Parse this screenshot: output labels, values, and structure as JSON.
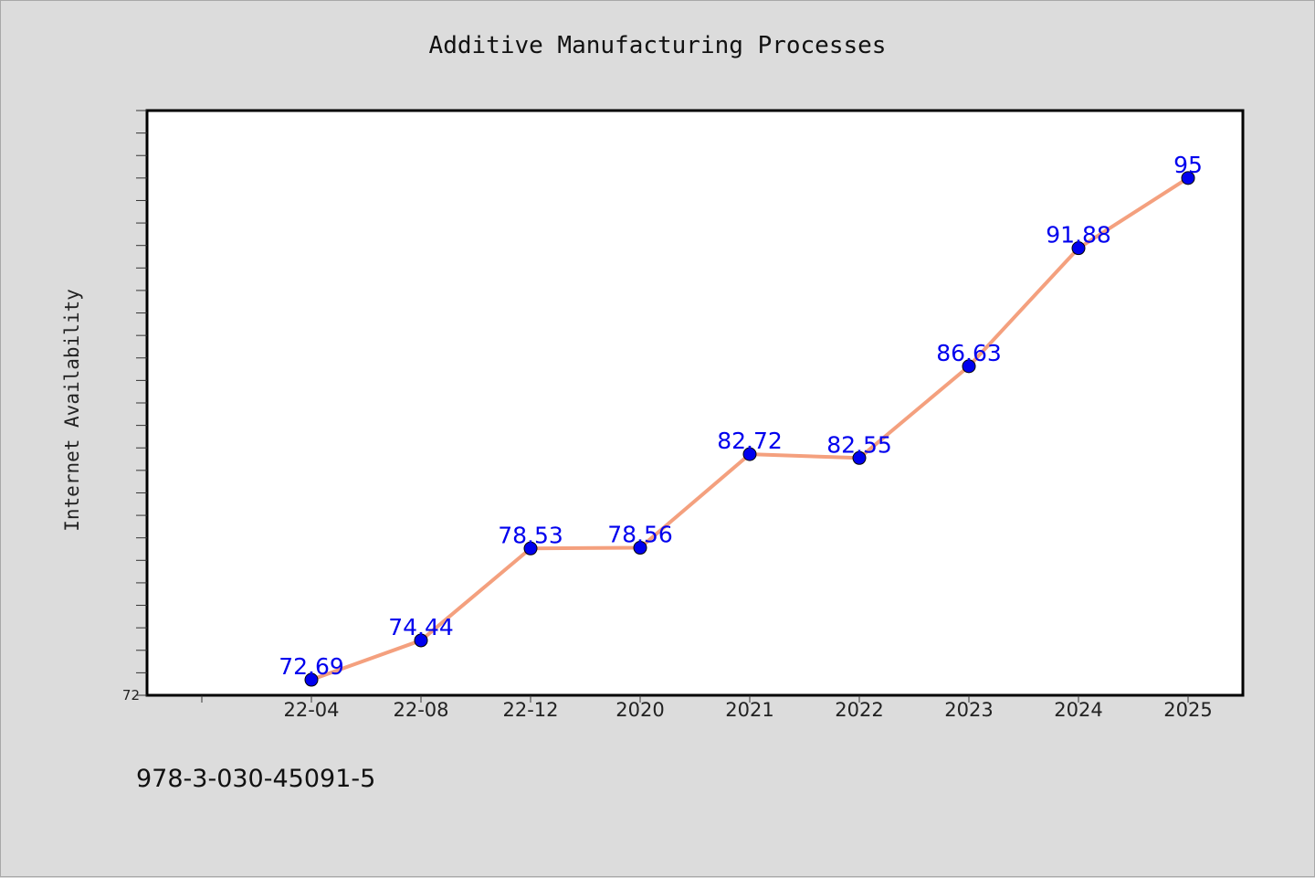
{
  "chart_data": {
    "type": "line",
    "title": "Additive Manufacturing Processes",
    "xlabel": "",
    "ylabel": "Internet Availability",
    "categories": [
      "22-04",
      "22-08",
      "22-12",
      "2020",
      "2021",
      "2022",
      "2023",
      "2024",
      "2025"
    ],
    "series": [
      {
        "values": [
          72.69,
          74.44,
          78.53,
          78.56,
          82.72,
          82.55,
          86.63,
          91.88,
          95
        ]
      }
    ],
    "data_labels": [
      "72.69",
      "74.44",
      "78.53",
      "78.56",
      "82.72",
      "82.55",
      "86.63",
      "91.88",
      "95"
    ],
    "ylim": [
      72,
      98
    ],
    "y_tick_labels": [
      "72"
    ],
    "grid": false,
    "colors": {
      "line": "#f4a07e",
      "marker": "#0000ee",
      "label": "#0000ee",
      "plot_bg": "#ffffff",
      "page_bg": "#dcdcdc"
    }
  },
  "footer": {
    "identifier": "978-3-030-45091-5"
  }
}
